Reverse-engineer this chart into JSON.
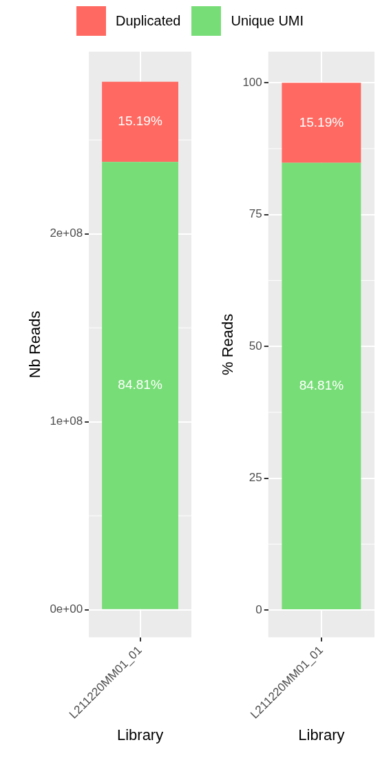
{
  "chart_data": [
    {
      "type": "bar",
      "categories": [
        "L211220MM01_01"
      ],
      "stacked": true,
      "xlabel": "Library",
      "ylabel": "Nb Reads",
      "ylim": [
        -14700000,
        297000000
      ],
      "yticks": [
        {
          "value": 0,
          "label": "0e+00"
        },
        {
          "value": 100000000,
          "label": "1e+08"
        },
        {
          "value": 200000000,
          "label": "2e+08"
        }
      ],
      "grid": true,
      "legend": "top",
      "annotations": [
        "84.81%",
        "15.19%"
      ],
      "series": [
        {
          "name": "Unique UMI",
          "color": "#77dd77",
          "values": [
            238300000
          ]
        },
        {
          "name": "Duplicated",
          "color": "#ff6961",
          "values": [
            42700000
          ]
        }
      ]
    },
    {
      "type": "bar",
      "categories": [
        "L211220MM01_01"
      ],
      "stacked": true,
      "xlabel": "Library",
      "ylabel": "% Reads",
      "ylim": [
        -5.2,
        105.9
      ],
      "yticks": [
        0,
        25,
        50,
        75,
        100
      ],
      "grid": true,
      "legend": "top",
      "series": [
        {
          "name": "Unique UMI",
          "color": "#77dd77",
          "values": [
            84.81
          ],
          "value_labels": [
            "84.81%"
          ]
        },
        {
          "name": "Duplicated",
          "color": "#ff6961",
          "values": [
            15.19
          ],
          "value_labels": [
            "15.19%"
          ]
        }
      ]
    }
  ]
}
